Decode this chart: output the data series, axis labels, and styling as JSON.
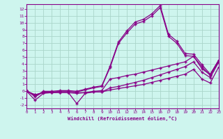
{
  "xlabel": "Windchill (Refroidissement éolien,°C)",
  "bg_color": "#cef5ee",
  "grid_color": "#aad5ca",
  "line_color": "#880088",
  "xlim": [
    0,
    23
  ],
  "ylim": [
    -2.5,
    12.7
  ],
  "xticks": [
    0,
    1,
    2,
    3,
    4,
    5,
    6,
    7,
    8,
    9,
    10,
    11,
    12,
    13,
    14,
    15,
    16,
    17,
    18,
    19,
    20,
    21,
    22,
    23
  ],
  "yticks": [
    -2,
    -1,
    0,
    1,
    2,
    3,
    4,
    5,
    6,
    7,
    8,
    9,
    10,
    11,
    12
  ],
  "series": [
    {
      "x": [
        0,
        1,
        2,
        3,
        4,
        5,
        6,
        7,
        8,
        9,
        10,
        11,
        12,
        13,
        14,
        15,
        16,
        17,
        18,
        19,
        20,
        21,
        22,
        23
      ],
      "y": [
        0.0,
        -0.5,
        -0.2,
        -0.2,
        -0.2,
        -0.2,
        -1.8,
        -0.3,
        -0.1,
        -0.1,
        0.2,
        0.4,
        0.6,
        0.8,
        1.0,
        1.3,
        1.6,
        1.9,
        2.2,
        2.5,
        3.2,
        1.8,
        1.2,
        3.5
      ]
    },
    {
      "x": [
        0,
        1,
        2,
        3,
        4,
        5,
        6,
        7,
        8,
        9,
        10,
        11,
        12,
        13,
        14,
        15,
        16,
        17,
        18,
        19,
        20,
        21,
        22,
        23
      ],
      "y": [
        0.0,
        -0.5,
        -0.2,
        -0.2,
        -0.2,
        -0.2,
        -0.3,
        -0.2,
        -0.1,
        -0.1,
        0.5,
        0.7,
        1.0,
        1.3,
        1.6,
        2.0,
        2.4,
        2.8,
        3.2,
        3.6,
        4.3,
        2.8,
        2.0,
        4.2
      ]
    },
    {
      "x": [
        0,
        1,
        2,
        3,
        4,
        5,
        6,
        7,
        8,
        9,
        10,
        11,
        12,
        13,
        14,
        15,
        16,
        17,
        18,
        19,
        20,
        21,
        22,
        23
      ],
      "y": [
        0.0,
        -1.3,
        -0.3,
        -0.2,
        -0.2,
        -0.2,
        -0.2,
        -0.2,
        0.0,
        0.1,
        1.8,
        2.0,
        2.3,
        2.5,
        2.8,
        3.1,
        3.4,
        3.7,
        4.0,
        4.3,
        5.1,
        3.3,
        2.4,
        4.5
      ]
    },
    {
      "x": [
        0,
        1,
        2,
        3,
        4,
        5,
        6,
        7,
        8,
        9,
        10,
        11,
        12,
        13,
        14,
        15,
        16,
        17,
        18,
        19,
        20,
        21,
        22,
        23
      ],
      "y": [
        0.1,
        -0.8,
        -0.1,
        -0.1,
        -0.0,
        -0.0,
        -0.1,
        0.2,
        0.5,
        0.7,
        3.5,
        7.0,
        8.5,
        9.8,
        10.2,
        11.0,
        12.2,
        8.0,
        7.0,
        5.2,
        5.1,
        3.6,
        2.3,
        4.3
      ]
    },
    {
      "x": [
        0,
        1,
        2,
        3,
        4,
        5,
        6,
        7,
        8,
        9,
        10,
        11,
        12,
        13,
        14,
        15,
        16,
        17,
        18,
        19,
        20,
        21,
        22,
        23
      ],
      "y": [
        0.1,
        -0.7,
        -0.0,
        0.0,
        0.1,
        0.1,
        0.0,
        0.3,
        0.6,
        0.8,
        3.7,
        7.2,
        8.8,
        10.1,
        10.5,
        11.3,
        12.5,
        8.3,
        7.3,
        5.5,
        5.4,
        3.9,
        2.5,
        4.5
      ]
    }
  ]
}
